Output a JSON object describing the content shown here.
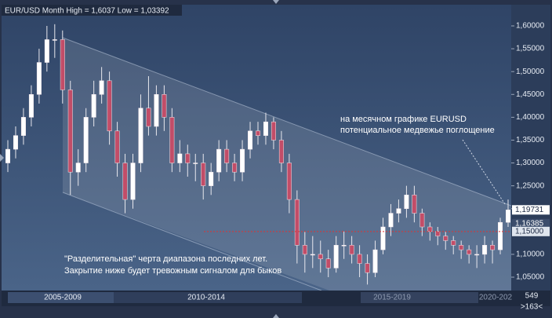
{
  "chart_data": {
    "type": "candlestick",
    "title": "EUR/USD Month High = 1,6037 Low = 1,03392",
    "ylim": [
      1.0208,
      1.6567
    ],
    "yticks": [
      {
        "value": 1.6,
        "label": "1,60000"
      },
      {
        "value": 1.55,
        "label": "1,55000"
      },
      {
        "value": 1.5,
        "label": "1,50000"
      },
      {
        "value": 1.45,
        "label": "1,45000"
      },
      {
        "value": 1.4,
        "label": "1,40000"
      },
      {
        "value": 1.35,
        "label": "1,35000"
      },
      {
        "value": 1.3,
        "label": "1,30000"
      },
      {
        "value": 1.25,
        "label": "1,25000"
      },
      {
        "value": 1.2,
        "label": "1,20000"
      },
      {
        "value": 1.1,
        "label": "1,10000"
      },
      {
        "value": 1.05,
        "label": "1,05000"
      }
    ],
    "price_markers": [
      {
        "value": 1.19731,
        "label": "1,19731"
      },
      {
        "value": 1.16385,
        "label": "1,16385"
      },
      {
        "value": 1.15,
        "label": "1,15000"
      }
    ],
    "periods": [
      "2005-2009",
      "2010-2014",
      "2015-2019",
      "2020-202"
    ],
    "counter": [
      "549",
      ">163<"
    ],
    "annotations": [
      [
        "на месячном графике EURUSD",
        "потенциальное медвежье поглощение"
      ],
      [
        "\"Разделительная\" черта диапазона последних лет.",
        "Закрытие ниже будет тревожным сигналом для быков"
      ]
    ],
    "up_color": "#ffffff",
    "down_color": "#c24d68",
    "open": [
      1.3,
      1.33,
      1.36,
      1.4,
      1.45,
      1.52,
      1.57,
      1.57,
      1.46,
      1.28,
      1.3,
      1.4,
      1.45,
      1.48,
      1.37,
      1.3,
      1.22,
      1.3,
      1.42,
      1.38,
      1.45,
      1.4,
      1.3,
      1.32,
      1.3,
      1.3,
      1.25,
      1.28,
      1.33,
      1.3,
      1.28,
      1.33,
      1.37,
      1.36,
      1.39,
      1.35,
      1.3,
      1.22,
      1.12,
      1.1,
      1.1,
      1.09,
      1.07,
      1.12,
      1.12,
      1.1,
      1.08,
      1.06,
      1.11,
      1.16,
      1.19,
      1.2,
      1.23,
      1.19,
      1.16,
      1.15,
      1.14,
      1.13,
      1.12,
      1.11,
      1.1,
      1.1,
      1.12,
      1.11,
      1.17
    ],
    "high": [
      1.35,
      1.38,
      1.42,
      1.47,
      1.55,
      1.6,
      1.6037,
      1.59,
      1.48,
      1.33,
      1.42,
      1.48,
      1.51,
      1.5,
      1.39,
      1.32,
      1.32,
      1.45,
      1.49,
      1.47,
      1.47,
      1.42,
      1.35,
      1.34,
      1.32,
      1.32,
      1.3,
      1.35,
      1.35,
      1.32,
      1.35,
      1.39,
      1.39,
      1.41,
      1.4,
      1.37,
      1.32,
      1.24,
      1.15,
      1.14,
      1.13,
      1.11,
      1.14,
      1.15,
      1.14,
      1.12,
      1.1,
      1.13,
      1.18,
      1.21,
      1.22,
      1.25,
      1.25,
      1.2,
      1.17,
      1.16,
      1.15,
      1.14,
      1.13,
      1.12,
      1.12,
      1.14,
      1.13,
      1.18,
      1.22
    ],
    "low": [
      1.28,
      1.31,
      1.34,
      1.38,
      1.43,
      1.5,
      1.53,
      1.43,
      1.23,
      1.25,
      1.28,
      1.38,
      1.43,
      1.34,
      1.27,
      1.19,
      1.2,
      1.28,
      1.36,
      1.36,
      1.37,
      1.28,
      1.28,
      1.27,
      1.26,
      1.22,
      1.23,
      1.26,
      1.28,
      1.26,
      1.26,
      1.31,
      1.34,
      1.34,
      1.33,
      1.28,
      1.19,
      1.08,
      1.06,
      1.07,
      1.06,
      1.05,
      1.06,
      1.09,
      1.08,
      1.05,
      1.03392,
      1.05,
      1.1,
      1.14,
      1.17,
      1.18,
      1.17,
      1.14,
      1.13,
      1.12,
      1.11,
      1.1,
      1.09,
      1.08,
      1.07,
      1.08,
      1.08,
      1.1,
      1.16
    ],
    "close": [
      1.33,
      1.36,
      1.4,
      1.45,
      1.52,
      1.57,
      1.57,
      1.46,
      1.28,
      1.3,
      1.4,
      1.45,
      1.48,
      1.37,
      1.3,
      1.22,
      1.3,
      1.42,
      1.38,
      1.45,
      1.4,
      1.3,
      1.32,
      1.3,
      1.3,
      1.25,
      1.28,
      1.33,
      1.3,
      1.28,
      1.33,
      1.37,
      1.36,
      1.39,
      1.35,
      1.3,
      1.22,
      1.12,
      1.1,
      1.1,
      1.09,
      1.07,
      1.12,
      1.12,
      1.1,
      1.08,
      1.06,
      1.11,
      1.16,
      1.19,
      1.2,
      1.23,
      1.19,
      1.16,
      1.15,
      1.14,
      1.13,
      1.12,
      1.11,
      1.1,
      1.1,
      1.12,
      1.11,
      1.17,
      1.19731
    ]
  }
}
